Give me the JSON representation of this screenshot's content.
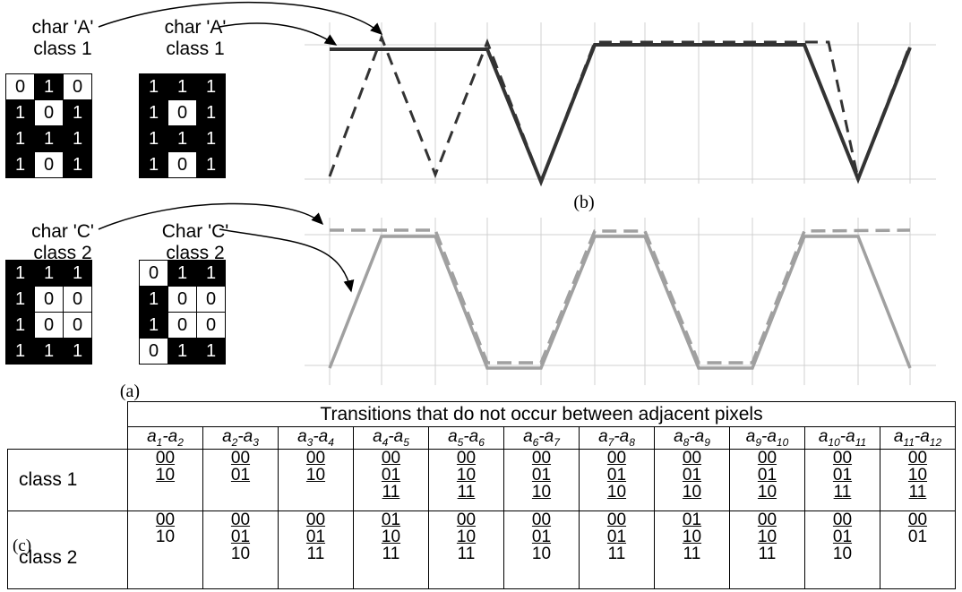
{
  "panel_a": {
    "letter": "(a)",
    "grids": [
      {
        "title1": "char 'A'",
        "title2": "class 1",
        "cells": [
          [
            "0",
            "1",
            "0"
          ],
          [
            "1",
            "0",
            "1"
          ],
          [
            "1",
            "1",
            "1"
          ],
          [
            "1",
            "0",
            "1"
          ]
        ],
        "white": [
          [
            1,
            0,
            1
          ],
          [
            0,
            1,
            0
          ],
          [
            0,
            0,
            0
          ],
          [
            0,
            1,
            0
          ]
        ]
      },
      {
        "title1": "char 'A'",
        "title2": "class 1",
        "cells": [
          [
            "1",
            "1",
            "1"
          ],
          [
            "1",
            "0",
            "1"
          ],
          [
            "1",
            "1",
            "1"
          ],
          [
            "1",
            "0",
            "1"
          ]
        ],
        "white": [
          [
            0,
            0,
            0
          ],
          [
            0,
            1,
            0
          ],
          [
            0,
            0,
            0
          ],
          [
            0,
            1,
            0
          ]
        ]
      },
      {
        "title1": "char 'C'",
        "title2": "class 2",
        "cells": [
          [
            "1",
            "1",
            "1"
          ],
          [
            "1",
            "0",
            "0"
          ],
          [
            "1",
            "0",
            "0"
          ],
          [
            "1",
            "1",
            "1"
          ]
        ],
        "white": [
          [
            0,
            0,
            0
          ],
          [
            0,
            1,
            1
          ],
          [
            0,
            1,
            1
          ],
          [
            0,
            0,
            0
          ]
        ]
      },
      {
        "title1": "Char 'C'",
        "title2": "class 2",
        "cells": [
          [
            "0",
            "1",
            "1"
          ],
          [
            "1",
            "0",
            "0"
          ],
          [
            "1",
            "0",
            "0"
          ],
          [
            "0",
            "1",
            "1"
          ]
        ],
        "white": [
          [
            1,
            0,
            0
          ],
          [
            0,
            1,
            1
          ],
          [
            0,
            1,
            1
          ],
          [
            1,
            0,
            0
          ]
        ]
      }
    ]
  },
  "panel_b": {
    "letter": "(b)"
  },
  "panel_c": {
    "letter": "(c)",
    "header": "Transitions that do not occur between adjacent pixels",
    "columns": [
      [
        "a",
        "1",
        "2"
      ],
      [
        "a",
        "2",
        "3"
      ],
      [
        "a",
        "3",
        "4"
      ],
      [
        "a",
        "4",
        "5"
      ],
      [
        "a",
        "5",
        "6"
      ],
      [
        "a",
        "6",
        "7"
      ],
      [
        "a",
        "7",
        "8"
      ],
      [
        "a",
        "8",
        "9"
      ],
      [
        "a",
        "9",
        "10"
      ],
      [
        "a",
        "10",
        "11"
      ],
      [
        "a",
        "11",
        "12"
      ]
    ],
    "rows": [
      {
        "label": "class 1",
        "cells": [
          [
            "00",
            "10"
          ],
          [
            "00",
            "01"
          ],
          [
            "00",
            "10"
          ],
          [
            "00",
            "01",
            "11"
          ],
          [
            "00",
            "10",
            "11"
          ],
          [
            "00",
            "01",
            "10"
          ],
          [
            "00",
            "01",
            "10"
          ],
          [
            "00",
            "01",
            "10"
          ],
          [
            "00",
            "01",
            "10"
          ],
          [
            "00",
            "01",
            "11"
          ],
          [
            "00",
            "10",
            "11"
          ]
        ]
      },
      {
        "label": "class 2",
        "cells": [
          [
            "00",
            "10"
          ],
          [
            "00",
            "01",
            "10"
          ],
          [
            "00",
            "01",
            "11"
          ],
          [
            "01",
            "10",
            "11"
          ],
          [
            "00",
            "10",
            "11"
          ],
          [
            "00",
            "01",
            "10"
          ],
          [
            "00",
            "01",
            "11"
          ],
          [
            "01",
            "10",
            "11"
          ],
          [
            "00",
            "10",
            "11"
          ],
          [
            "00",
            "01",
            "10"
          ],
          [
            "00",
            "01"
          ]
        ]
      }
    ]
  },
  "colors": {
    "dark_line": "#333333",
    "light_line": "#a0a0a0",
    "grid_line": "#d0d0d0"
  }
}
